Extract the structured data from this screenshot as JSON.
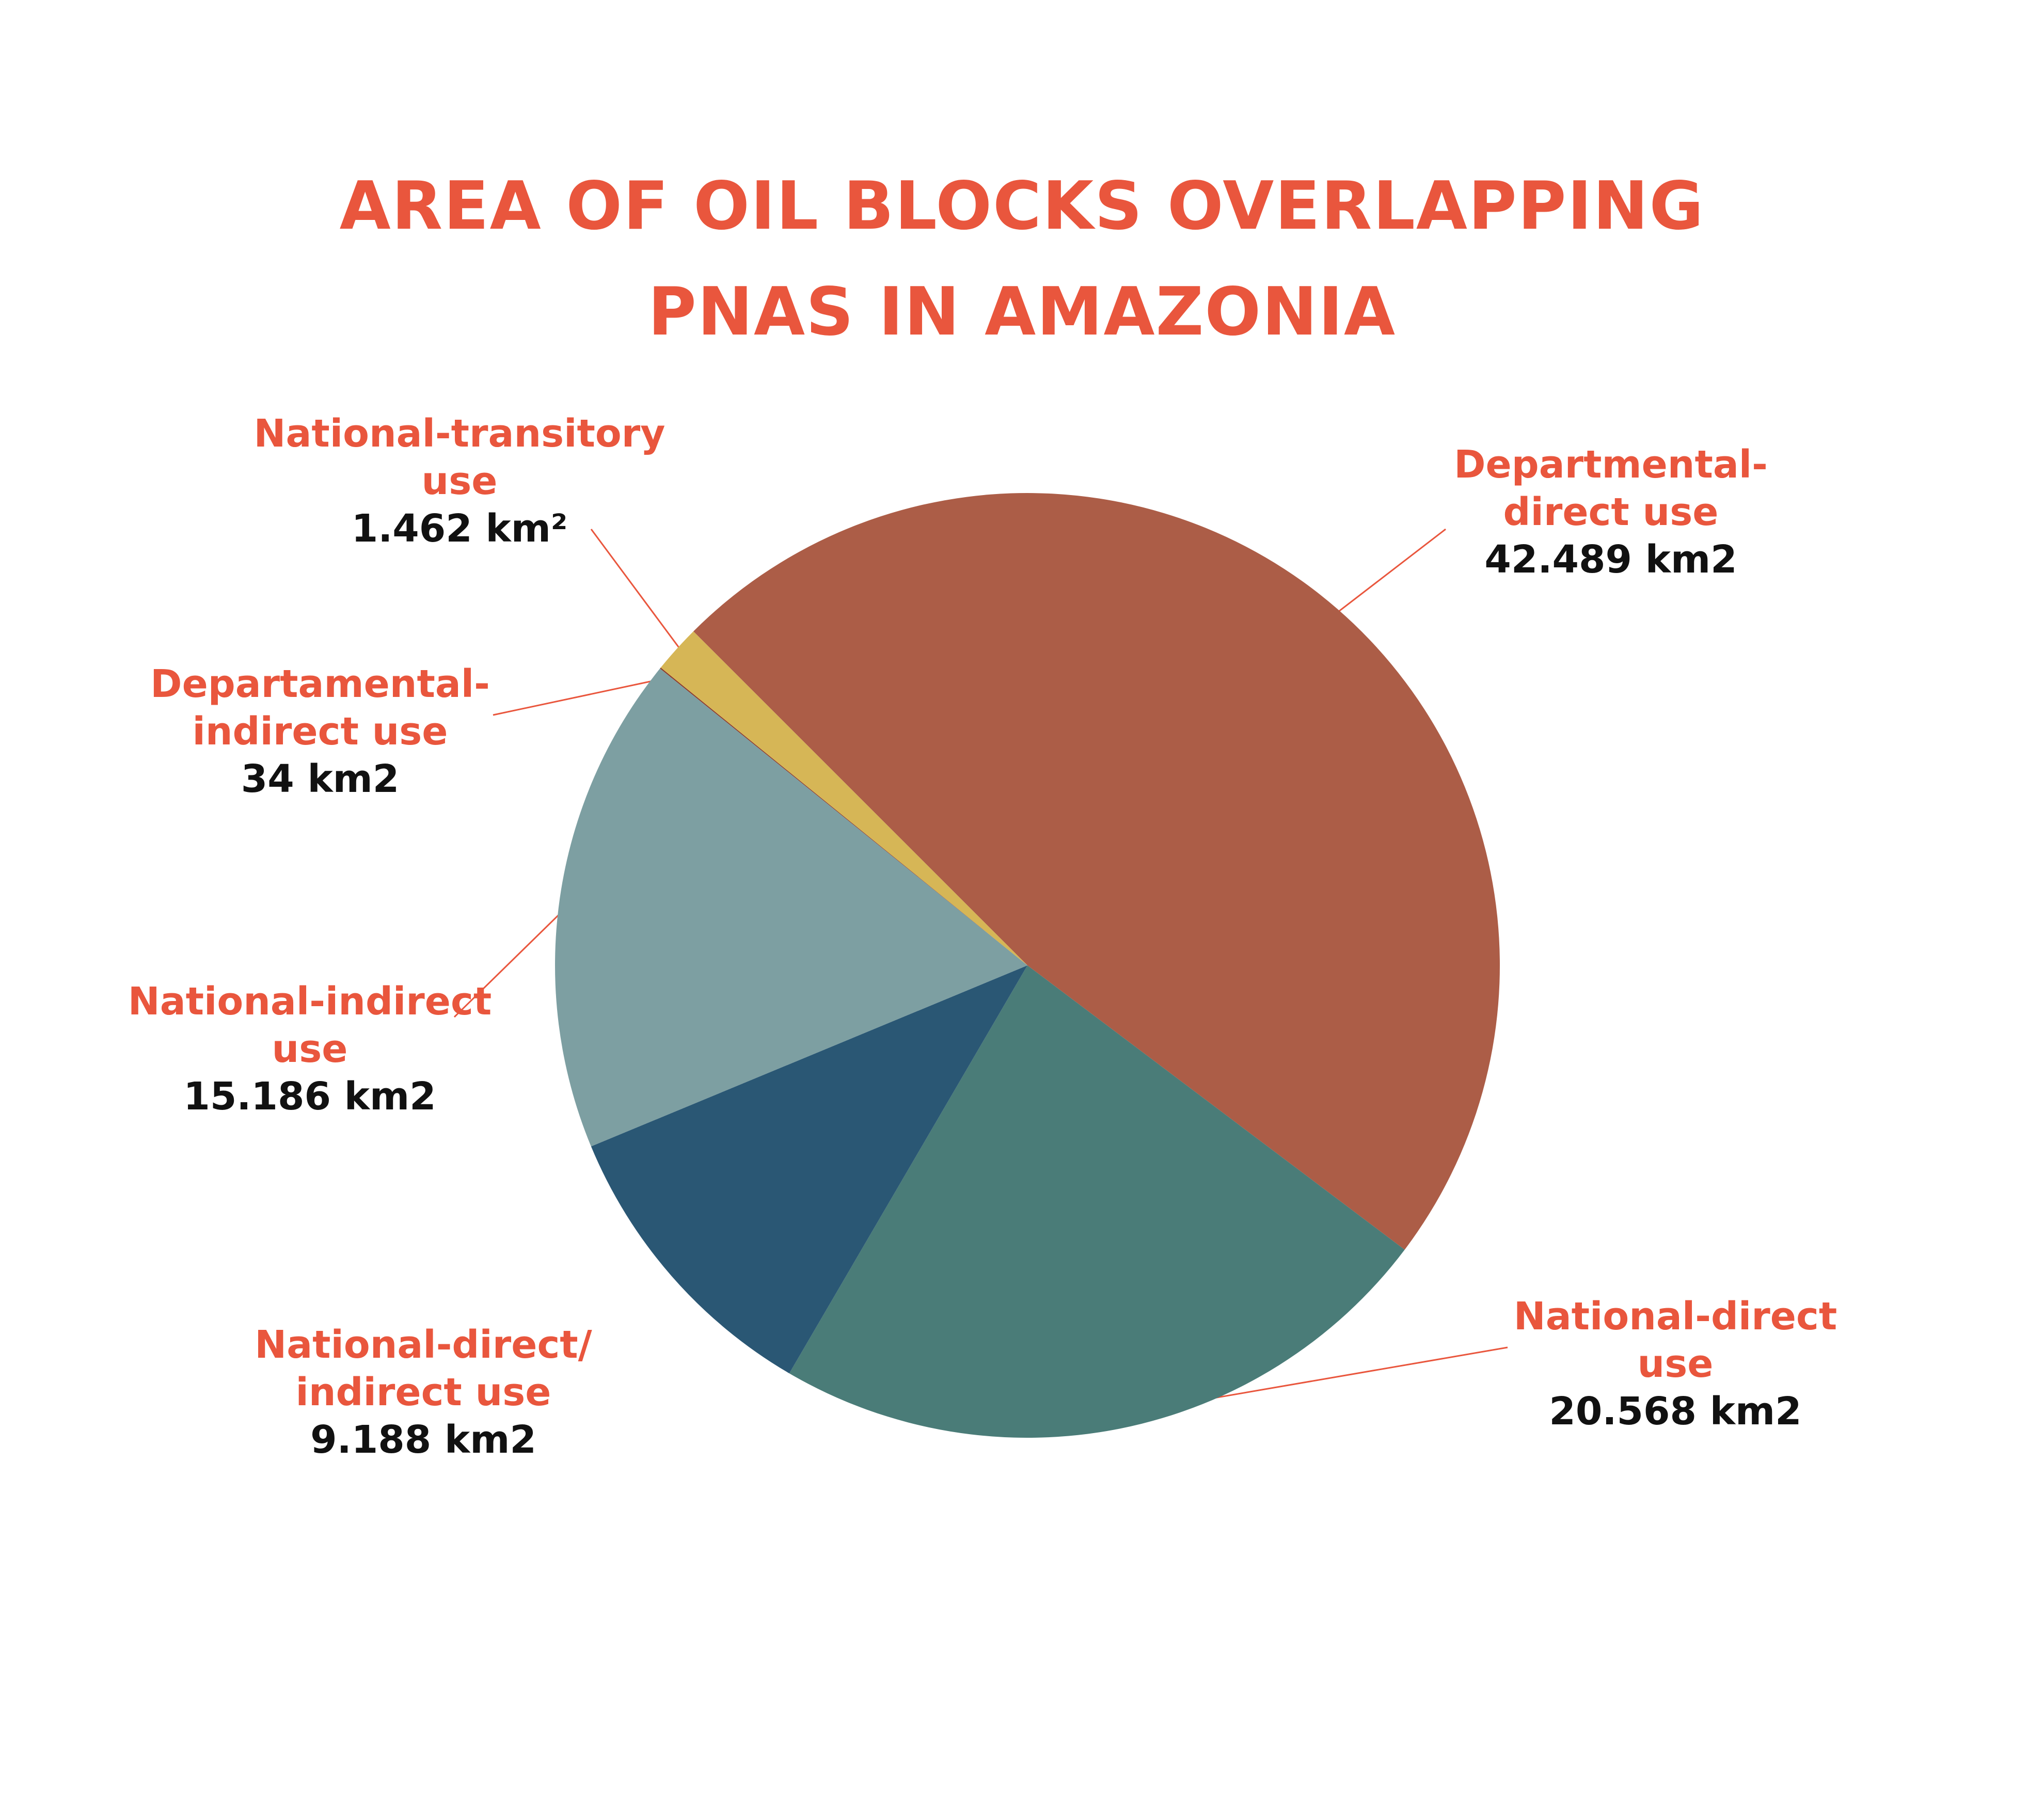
{
  "title_lines": [
    "AREA OF OIL BLOCKS OVERLAPPING",
    "PNAS IN AMAZONIA"
  ],
  "colors": {
    "title": "#E9563D",
    "label_name": "#E9563D",
    "label_value": "#111111",
    "leader_line": "#E9563D"
  },
  "chart_data": {
    "type": "pie",
    "title": "AREA OF OIL BLOCKS OVERLAPPING PNAS IN AMAZONIA",
    "start_angle_deg": 135,
    "direction": "clockwise",
    "slices": [
      {
        "name_lines": [
          "Departmental-",
          "direct use"
        ],
        "value": 42489,
        "value_label": "42.489 km2",
        "color": "#AC5D47"
      },
      {
        "name_lines": [
          "National-direct",
          "use"
        ],
        "value": 20568,
        "value_label": "20.568 km2",
        "color": "#4A7C78"
      },
      {
        "name_lines": [
          "National-direct/",
          "indirect use"
        ],
        "value": 9188,
        "value_label": "9.188 km2",
        "color": "#2A5774"
      },
      {
        "name_lines": [
          "National-indirect",
          "use"
        ],
        "value": 15186,
        "value_label": "15.186 km2",
        "color": "#7D9FA2"
      },
      {
        "name_lines": [
          "Departamental-",
          "indirect use"
        ],
        "value": 34,
        "value_label": "34 km2",
        "color": "#8C3A2A"
      },
      {
        "name_lines": [
          "National-transitory",
          "use"
        ],
        "value": 1462,
        "value_label": "1.462 km²",
        "color": "#D6B656"
      }
    ]
  }
}
